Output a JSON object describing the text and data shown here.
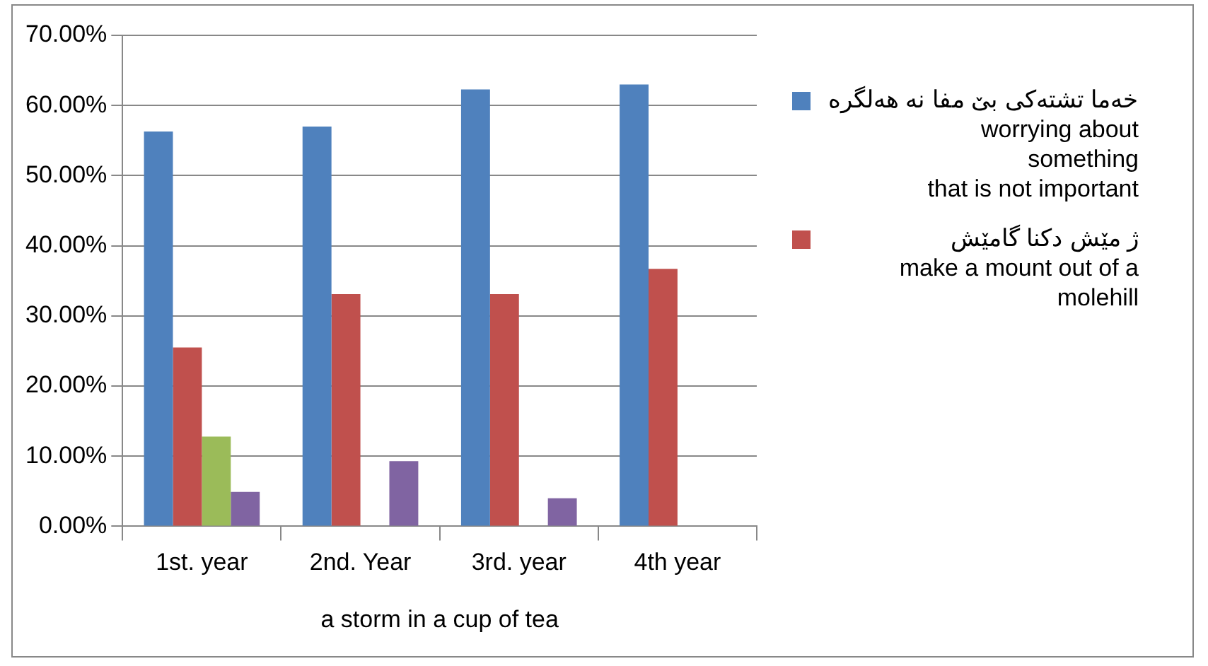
{
  "chart_data": {
    "type": "bar",
    "xlabel": "a storm in a cup of tea",
    "categories": [
      "1st. year",
      "2nd. Year",
      "3rd. year",
      "4th year"
    ],
    "series": [
      {
        "name": "خەما تشتەکی بێ مفا نە هەلگرە\nworrying about\nsomething\nthat is not important",
        "color": "#4f81bd",
        "values": [
          56.3,
          57.0,
          62.3,
          63.0
        ]
      },
      {
        "name": "ژ مێش دکنا گامێش\nmake a mount out of a\nmolehill",
        "color": "#c0504d",
        "values": [
          25.5,
          33.1,
          33.1,
          36.7
        ]
      },
      {
        "color": "#9bbb59",
        "values": [
          12.8,
          null,
          null,
          null
        ]
      },
      {
        "color": "#8064a2",
        "values": [
          4.9,
          9.3,
          4.0,
          null
        ]
      }
    ],
    "ylim": [
      0,
      70
    ],
    "yticks": [
      {
        "value": 0,
        "label": "0.00%"
      },
      {
        "value": 10,
        "label": "10.00%"
      },
      {
        "value": 20,
        "label": "20.00%"
      },
      {
        "value": 30,
        "label": "30.00%"
      },
      {
        "value": 40,
        "label": "40.00%"
      },
      {
        "value": 50,
        "label": "50.00%"
      },
      {
        "value": 60,
        "label": "60.00%"
      },
      {
        "value": 70,
        "label": "70.00%"
      }
    ],
    "grid": "y",
    "legend": "right"
  }
}
